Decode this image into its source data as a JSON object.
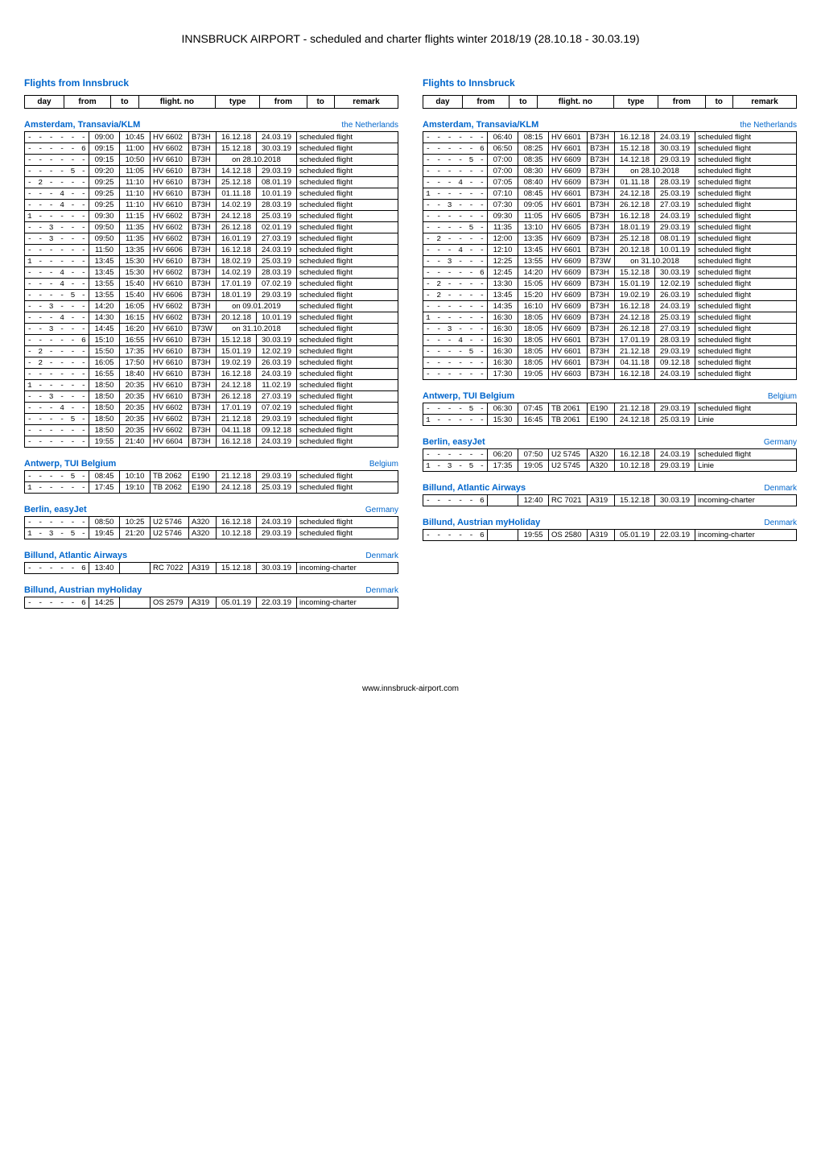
{
  "page_title": "INNSBRUCK AIRPORT - scheduled and charter flights winter 2018/19 (28.10.18 - 30.03.19)",
  "footer": "www.innsbruck-airport.com",
  "left": {
    "header": "Flights from Innsbruck",
    "header_cols": [
      "day",
      "from",
      "to",
      "flight. no",
      "type",
      "from",
      "to",
      "remark"
    ]
  },
  "right": {
    "header": "Flights to Innsbruck",
    "header_cols": [
      "day",
      "from",
      "to",
      "flight. no",
      "type",
      "from",
      "to",
      "remark"
    ]
  },
  "sections_left": [
    {
      "title": "Amsterdam, Transavia/KLM",
      "country": "the Netherlands",
      "rows": [
        {
          "day": "- - - - - - 7",
          "from": "09:00",
          "to": "10:45",
          "flight": "HV 6602",
          "type": "B73H",
          "dfrom": "16.12.18",
          "dto": "24.03.19",
          "remark": "scheduled flight"
        },
        {
          "day": "- - - - - 6 -",
          "from": "09:15",
          "to": "11:00",
          "flight": "HV 6602",
          "type": "B73H",
          "dfrom": "15.12.18",
          "dto": "30.03.19",
          "remark": "scheduled flight"
        },
        {
          "day": "- - - - - - 7",
          "from": "09:15",
          "to": "10:50",
          "flight": "HV 6610",
          "type": "B73H",
          "span": "on 28.10.2018",
          "remark": "scheduled flight"
        },
        {
          "day": "- - - - 5 - -",
          "from": "09:20",
          "to": "11:05",
          "flight": "HV 6610",
          "type": "B73H",
          "dfrom": "14.12.18",
          "dto": "29.03.19",
          "remark": "scheduled flight"
        },
        {
          "day": "- 2 - - - - -",
          "from": "09:25",
          "to": "11:10",
          "flight": "HV 6610",
          "type": "B73H",
          "dfrom": "25.12.18",
          "dto": "08.01.19",
          "remark": "scheduled flight"
        },
        {
          "day": "- - - 4 - - -",
          "from": "09:25",
          "to": "11:10",
          "flight": "HV 6610",
          "type": "B73H",
          "dfrom": "01.11.18",
          "dto": "10.01.19",
          "remark": "scheduled flight"
        },
        {
          "day": "- - - 4 - - -",
          "from": "09:25",
          "to": "11:10",
          "flight": "HV 6610",
          "type": "B73H",
          "dfrom": "14.02.19",
          "dto": "28.03.19",
          "remark": "scheduled flight"
        },
        {
          "day": "1 - - - - - -",
          "from": "09:30",
          "to": "11:15",
          "flight": "HV 6602",
          "type": "B73H",
          "dfrom": "24.12.18",
          "dto": "25.03.19",
          "remark": "scheduled flight"
        },
        {
          "day": "- - 3 - - - -",
          "from": "09:50",
          "to": "11:35",
          "flight": "HV 6602",
          "type": "B73H",
          "dfrom": "26.12.18",
          "dto": "02.01.19",
          "remark": "scheduled flight"
        },
        {
          "day": "- - 3 - - - -",
          "from": "09:50",
          "to": "11:35",
          "flight": "HV 6602",
          "type": "B73H",
          "dfrom": "16.01.19",
          "dto": "27.03.19",
          "remark": "scheduled flight"
        },
        {
          "day": "- - - - - - 7",
          "from": "11:50",
          "to": "13:35",
          "flight": "HV 6606",
          "type": "B73H",
          "dfrom": "16.12.18",
          "dto": "24.03.19",
          "remark": "scheduled flight"
        },
        {
          "day": "1 - - - - - -",
          "from": "13:45",
          "to": "15:30",
          "flight": "HV 6610",
          "type": "B73H",
          "dfrom": "18.02.19",
          "dto": "25.03.19",
          "remark": "scheduled flight"
        },
        {
          "day": "- - - 4 - - -",
          "from": "13:45",
          "to": "15:30",
          "flight": "HV 6602",
          "type": "B73H",
          "dfrom": "14.02.19",
          "dto": "28.03.19",
          "remark": "scheduled flight"
        },
        {
          "day": "- - - 4 - - -",
          "from": "13:55",
          "to": "15:40",
          "flight": "HV 6610",
          "type": "B73H",
          "dfrom": "17.01.19",
          "dto": "07.02.19",
          "remark": "scheduled flight"
        },
        {
          "day": "- - - - 5 - -",
          "from": "13:55",
          "to": "15:40",
          "flight": "HV 6606",
          "type": "B73H",
          "dfrom": "18.01.19",
          "dto": "29.03.19",
          "remark": "scheduled flight"
        },
        {
          "day": "- - 3 - - - -",
          "from": "14:20",
          "to": "16:05",
          "flight": "HV 6602",
          "type": "B73H",
          "span": "on 09.01.2019",
          "remark": "scheduled flight"
        },
        {
          "day": "- - - 4 - - -",
          "from": "14:30",
          "to": "16:15",
          "flight": "HV 6602",
          "type": "B73H",
          "dfrom": "20.12.18",
          "dto": "10.01.19",
          "remark": "scheduled flight"
        },
        {
          "day": "- - 3 - - - -",
          "from": "14:45",
          "to": "16:20",
          "flight": "HV 6610",
          "type": "B73W",
          "span": "on 31.10.2018",
          "remark": "scheduled flight"
        },
        {
          "day": "- - - - - 6 -",
          "from": "15:10",
          "to": "16:55",
          "flight": "HV 6610",
          "type": "B73H",
          "dfrom": "15.12.18",
          "dto": "30.03.19",
          "remark": "scheduled flight"
        },
        {
          "day": "- 2 - - - - -",
          "from": "15:50",
          "to": "17:35",
          "flight": "HV 6610",
          "type": "B73H",
          "dfrom": "15.01.19",
          "dto": "12.02.19",
          "remark": "scheduled flight"
        },
        {
          "day": "- 2 - - - - -",
          "from": "16:05",
          "to": "17:50",
          "flight": "HV 6610",
          "type": "B73H",
          "dfrom": "19.02.19",
          "dto": "26.03.19",
          "remark": "scheduled flight"
        },
        {
          "day": "- - - - - - 7",
          "from": "16:55",
          "to": "18:40",
          "flight": "HV 6610",
          "type": "B73H",
          "dfrom": "16.12.18",
          "dto": "24.03.19",
          "remark": "scheduled flight"
        },
        {
          "day": "1 - - - - - -",
          "from": "18:50",
          "to": "20:35",
          "flight": "HV 6610",
          "type": "B73H",
          "dfrom": "24.12.18",
          "dto": "11.02.19",
          "remark": "scheduled flight"
        },
        {
          "day": "- - 3 - - - -",
          "from": "18:50",
          "to": "20:35",
          "flight": "HV 6610",
          "type": "B73H",
          "dfrom": "26.12.18",
          "dto": "27.03.19",
          "remark": "scheduled flight"
        },
        {
          "day": "- - - 4 - - -",
          "from": "18:50",
          "to": "20:35",
          "flight": "HV 6602",
          "type": "B73H",
          "dfrom": "17.01.19",
          "dto": "07.02.19",
          "remark": "scheduled flight"
        },
        {
          "day": "- - - - 5 - -",
          "from": "18:50",
          "to": "20:35",
          "flight": "HV 6602",
          "type": "B73H",
          "dfrom": "21.12.18",
          "dto": "29.03.19",
          "remark": "scheduled flight"
        },
        {
          "day": "- - - - - - 7",
          "from": "18:50",
          "to": "20:35",
          "flight": "HV 6602",
          "type": "B73H",
          "dfrom": "04.11.18",
          "dto": "09.12.18",
          "remark": "scheduled flight"
        },
        {
          "day": "- - - - - - 7",
          "from": "19:55",
          "to": "21:40",
          "flight": "HV 6604",
          "type": "B73H",
          "dfrom": "16.12.18",
          "dto": "24.03.19",
          "remark": "scheduled flight"
        }
      ]
    },
    {
      "title": "Antwerp, TUI Belgium",
      "country": "Belgium",
      "rows": [
        {
          "day": "- - - - 5 - -",
          "from": "08:45",
          "to": "10:10",
          "flight": "TB 2062",
          "type": "E190",
          "dfrom": "21.12.18",
          "dto": "29.03.19",
          "remark": "scheduled flight"
        },
        {
          "day": "1 - - - - - -",
          "from": "17:45",
          "to": "19:10",
          "flight": "TB 2062",
          "type": "E190",
          "dfrom": "24.12.18",
          "dto": "25.03.19",
          "remark": "scheduled flight"
        }
      ]
    },
    {
      "title": "Berlin, easyJet",
      "country": "Germany",
      "rows": [
        {
          "day": "- - - - - - 7",
          "from": "08:50",
          "to": "10:25",
          "flight": "U2 5746",
          "type": "A320",
          "dfrom": "16.12.18",
          "dto": "24.03.19",
          "remark": "scheduled flight"
        },
        {
          "day": "1 - 3 - 5 - -",
          "from": "19:45",
          "to": "21:20",
          "flight": "U2 5746",
          "type": "A320",
          "dfrom": "10.12.18",
          "dto": "29.03.19",
          "remark": "scheduled flight"
        }
      ]
    },
    {
      "title": "Billund, Atlantic Airways",
      "country": "Denmark",
      "rows": [
        {
          "day": "- - - - - 6 -",
          "from": "13:40",
          "to": "",
          "flight": "RC 7022",
          "type": "A319",
          "dfrom": "15.12.18",
          "dto": "30.03.19",
          "remark": "incoming-charter"
        }
      ]
    },
    {
      "title": "Billund, Austrian myHoliday",
      "country": "Denmark",
      "rows": [
        {
          "day": "- - - - - 6 -",
          "from": "14:25",
          "to": "",
          "flight": "OS 2579",
          "type": "A319",
          "dfrom": "05.01.19",
          "dto": "22.03.19",
          "remark": "incoming-charter"
        }
      ]
    }
  ],
  "sections_right": [
    {
      "title": "Amsterdam, Transavia/KLM",
      "country": "the Netherlands",
      "rows": [
        {
          "day": "- - - - - - 7",
          "from": "06:40",
          "to": "08:15",
          "flight": "HV 6601",
          "type": "B73H",
          "dfrom": "16.12.18",
          "dto": "24.03.19",
          "remark": "scheduled flight"
        },
        {
          "day": "- - - - - 6 -",
          "from": "06:50",
          "to": "08:25",
          "flight": "HV 6601",
          "type": "B73H",
          "dfrom": "15.12.18",
          "dto": "30.03.19",
          "remark": "scheduled flight"
        },
        {
          "day": "- - - - 5 - -",
          "from": "07:00",
          "to": "08:35",
          "flight": "HV 6609",
          "type": "B73H",
          "dfrom": "14.12.18",
          "dto": "29.03.19",
          "remark": "scheduled flight"
        },
        {
          "day": "- - - - - - 7",
          "from": "07:00",
          "to": "08:30",
          "flight": "HV 6609",
          "type": "B73H",
          "span": "on 28.10.2018",
          "remark": "scheduled flight"
        },
        {
          "day": "- - - 4 - - -",
          "from": "07:05",
          "to": "08:40",
          "flight": "HV 6609",
          "type": "B73H",
          "dfrom": "01.11.18",
          "dto": "28.03.19",
          "remark": "scheduled flight"
        },
        {
          "day": "1 - - - - - -",
          "from": "07:10",
          "to": "08:45",
          "flight": "HV 6601",
          "type": "B73H",
          "dfrom": "24.12.18",
          "dto": "25.03.19",
          "remark": "scheduled flight"
        },
        {
          "day": "- - 3 - - - -",
          "from": "07:30",
          "to": "09:05",
          "flight": "HV 6601",
          "type": "B73H",
          "dfrom": "26.12.18",
          "dto": "27.03.19",
          "remark": "scheduled flight"
        },
        {
          "day": "- - - - - - 7",
          "from": "09:30",
          "to": "11:05",
          "flight": "HV 6605",
          "type": "B73H",
          "dfrom": "16.12.18",
          "dto": "24.03.19",
          "remark": "scheduled flight"
        },
        {
          "day": "- - - - 5 - -",
          "from": "11:35",
          "to": "13:10",
          "flight": "HV 6605",
          "type": "B73H",
          "dfrom": "18.01.19",
          "dto": "29.03.19",
          "remark": "scheduled flight"
        },
        {
          "day": "- 2 - - - - -",
          "from": "12:00",
          "to": "13:35",
          "flight": "HV 6609",
          "type": "B73H",
          "dfrom": "25.12.18",
          "dto": "08.01.19",
          "remark": "scheduled flight"
        },
        {
          "day": "- - - 4 - - -",
          "from": "12:10",
          "to": "13:45",
          "flight": "HV 6601",
          "type": "B73H",
          "dfrom": "20.12.18",
          "dto": "10.01.19",
          "remark": "scheduled flight"
        },
        {
          "day": "- - 3 - - - -",
          "from": "12:25",
          "to": "13:55",
          "flight": "HV 6609",
          "type": "B73W",
          "span": "on 31.10.2018",
          "remark": "scheduled flight"
        },
        {
          "day": "- - - - - 6 -",
          "from": "12:45",
          "to": "14:20",
          "flight": "HV 6609",
          "type": "B73H",
          "dfrom": "15.12.18",
          "dto": "30.03.19",
          "remark": "scheduled flight"
        },
        {
          "day": "- 2 - - - - -",
          "from": "13:30",
          "to": "15:05",
          "flight": "HV 6609",
          "type": "B73H",
          "dfrom": "15.01.19",
          "dto": "12.02.19",
          "remark": "scheduled flight"
        },
        {
          "day": "- 2 - - - - -",
          "from": "13:45",
          "to": "15:20",
          "flight": "HV 6609",
          "type": "B73H",
          "dfrom": "19.02.19",
          "dto": "26.03.19",
          "remark": "scheduled flight"
        },
        {
          "day": "- - - - - - 7",
          "from": "14:35",
          "to": "16:10",
          "flight": "HV 6609",
          "type": "B73H",
          "dfrom": "16.12.18",
          "dto": "24.03.19",
          "remark": "scheduled flight"
        },
        {
          "day": "1 - - - - - -",
          "from": "16:30",
          "to": "18:05",
          "flight": "HV 6609",
          "type": "B73H",
          "dfrom": "24.12.18",
          "dto": "25.03.19",
          "remark": "scheduled flight"
        },
        {
          "day": "- - 3 - - - -",
          "from": "16:30",
          "to": "18:05",
          "flight": "HV 6609",
          "type": "B73H",
          "dfrom": "26.12.18",
          "dto": "27.03.19",
          "remark": "scheduled flight"
        },
        {
          "day": "- - - 4 - - -",
          "from": "16:30",
          "to": "18:05",
          "flight": "HV 6601",
          "type": "B73H",
          "dfrom": "17.01.19",
          "dto": "28.03.19",
          "remark": "scheduled flight"
        },
        {
          "day": "- - - - 5 - -",
          "from": "16:30",
          "to": "18:05",
          "flight": "HV 6601",
          "type": "B73H",
          "dfrom": "21.12.18",
          "dto": "29.03.19",
          "remark": "scheduled flight"
        },
        {
          "day": "- - - - - - 7",
          "from": "16:30",
          "to": "18:05",
          "flight": "HV 6601",
          "type": "B73H",
          "dfrom": "04.11.18",
          "dto": "09.12.18",
          "remark": "scheduled flight"
        },
        {
          "day": "- - - - - - 7",
          "from": "17:30",
          "to": "19:05",
          "flight": "HV 6603",
          "type": "B73H",
          "dfrom": "16.12.18",
          "dto": "24.03.19",
          "remark": "scheduled flight"
        }
      ]
    },
    {
      "title": "Antwerp, TUI Belgium",
      "country": "Belgium",
      "rows": [
        {
          "day": "- - - - 5 - -",
          "from": "06:30",
          "to": "07:45",
          "flight": "TB 2061",
          "type": "E190",
          "dfrom": "21.12.18",
          "dto": "29.03.19",
          "remark": "scheduled flight"
        },
        {
          "day": "1 - - - - - -",
          "from": "15:30",
          "to": "16:45",
          "flight": "TB 2061",
          "type": "E190",
          "dfrom": "24.12.18",
          "dto": "25.03.19",
          "remark": "Linie"
        }
      ]
    },
    {
      "title": "Berlin, easyJet",
      "country": "Germany",
      "rows": [
        {
          "day": "- - - - - - 7",
          "from": "06:20",
          "to": "07:50",
          "flight": "U2 5745",
          "type": "A320",
          "dfrom": "16.12.18",
          "dto": "24.03.19",
          "remark": "scheduled flight"
        },
        {
          "day": "1 - 3 - 5 - -",
          "from": "17:35",
          "to": "19:05",
          "flight": "U2 5745",
          "type": "A320",
          "dfrom": "10.12.18",
          "dto": "29.03.19",
          "remark": "Linie"
        }
      ]
    },
    {
      "title": "Billund, Atlantic Airways",
      "country": "Denmark",
      "rows": [
        {
          "day": "- - - - - 6 -",
          "from": "",
          "to": "12:40",
          "flight": "RC 7021",
          "type": "A319",
          "dfrom": "15.12.18",
          "dto": "30.03.19",
          "remark": "incoming-charter"
        }
      ]
    },
    {
      "title": "Billund, Austrian myHoliday",
      "country": "Denmark",
      "rows": [
        {
          "day": "- - - - - 6 -",
          "from": "",
          "to": "19:55",
          "flight": "OS 2580",
          "type": "A319",
          "dfrom": "05.01.19",
          "dto": "22.03.19",
          "remark": "incoming-charter"
        }
      ]
    }
  ]
}
